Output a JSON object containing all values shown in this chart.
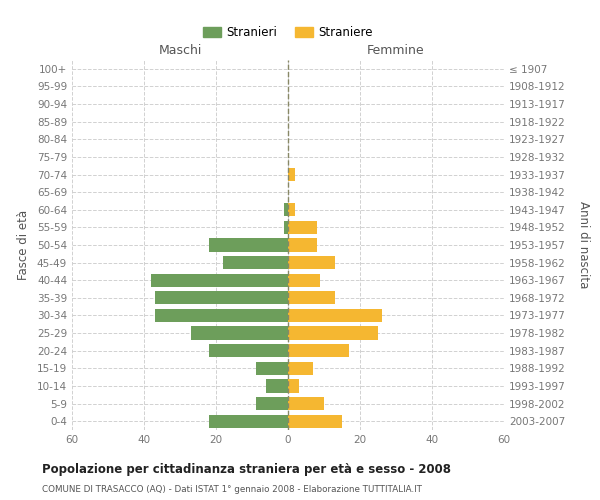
{
  "age_groups": [
    "0-4",
    "5-9",
    "10-14",
    "15-19",
    "20-24",
    "25-29",
    "30-34",
    "35-39",
    "40-44",
    "45-49",
    "50-54",
    "55-59",
    "60-64",
    "65-69",
    "70-74",
    "75-79",
    "80-84",
    "85-89",
    "90-94",
    "95-99",
    "100+"
  ],
  "birth_years": [
    "2003-2007",
    "1998-2002",
    "1993-1997",
    "1988-1992",
    "1983-1987",
    "1978-1982",
    "1973-1977",
    "1968-1972",
    "1963-1967",
    "1958-1962",
    "1953-1957",
    "1948-1952",
    "1943-1947",
    "1938-1942",
    "1933-1937",
    "1928-1932",
    "1923-1927",
    "1918-1922",
    "1913-1917",
    "1908-1912",
    "≤ 1907"
  ],
  "males": [
    22,
    9,
    6,
    9,
    22,
    27,
    37,
    37,
    38,
    18,
    22,
    1,
    1,
    0,
    0,
    0,
    0,
    0,
    0,
    0,
    0
  ],
  "females": [
    15,
    10,
    3,
    7,
    17,
    25,
    26,
    13,
    9,
    13,
    8,
    8,
    2,
    0,
    2,
    0,
    0,
    0,
    0,
    0,
    0
  ],
  "male_color": "#6d9e5b",
  "female_color": "#f5b731",
  "background_color": "#ffffff",
  "grid_color": "#cccccc",
  "title": "Popolazione per cittadinanza straniera per età e sesso - 2008",
  "subtitle": "COMUNE DI TRASACCO (AQ) - Dati ISTAT 1° gennaio 2008 - Elaborazione TUTTITALIA.IT",
  "ylabel_left": "Fasce di età",
  "ylabel_right": "Anni di nascita",
  "header_maschi": "Maschi",
  "header_femmine": "Femmine",
  "legend_stranieri": "Stranieri",
  "legend_straniere": "Straniere",
  "xlim": 60
}
